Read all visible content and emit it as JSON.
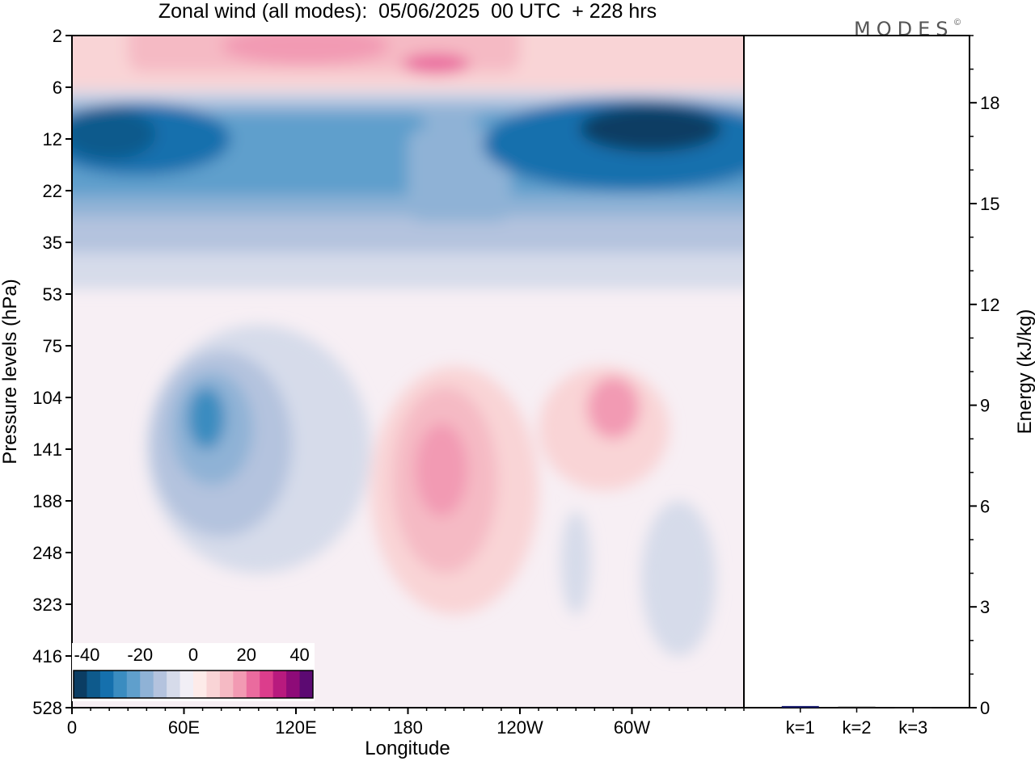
{
  "chart_data": [
    {
      "type": "heatmap",
      "title": "Zonal wind (all modes):  05/06/2025  00 UTC  + 228 hrs",
      "xlabel": "Longitude",
      "ylabel": "Pressure levels (hPa)",
      "x_ticks": [
        "0",
        "60E",
        "120E",
        "180",
        "120W",
        "60W"
      ],
      "x_tick_values": [
        0,
        60,
        120,
        180,
        240,
        300
      ],
      "xlim": [
        0,
        360
      ],
      "y_ticks": [
        "2",
        "6",
        "12",
        "22",
        "35",
        "53",
        "75",
        "104",
        "141",
        "188",
        "248",
        "323",
        "416",
        "528"
      ],
      "y_scale": "level-index",
      "colorbar": {
        "ticks": [
          "-40",
          "-20",
          "0",
          "20",
          "40"
        ],
        "tick_values": [
          -40,
          -20,
          0,
          20,
          40
        ],
        "range": [
          -45,
          45
        ],
        "step": 5,
        "colors": [
          "#0b3d63",
          "#0e5a8c",
          "#1570ad",
          "#3a8cc0",
          "#5f9fcc",
          "#8fb2d6",
          "#b4c3de",
          "#d6dbea",
          "#f1eff6",
          "#fdebe9",
          "#f9d4d6",
          "#f5bac4",
          "#f29ab3",
          "#ea6b9e",
          "#dc3d8c",
          "#b81a7e",
          "#8e0b78",
          "#5c0a72"
        ]
      },
      "features": [
        {
          "name": "stratospheric easterly jet",
          "lon_range": [
            0,
            360
          ],
          "levels": [
            "6",
            "35"
          ],
          "min_value": -40
        },
        {
          "name": "upper westerly band",
          "lon_range": [
            40,
            230
          ],
          "levels": [
            "2",
            "6"
          ],
          "max_value": 25
        },
        {
          "name": "easterly core",
          "lon_center": 75,
          "levels": [
            "75",
            "188"
          ],
          "min_value": -25
        },
        {
          "name": "westerly core",
          "lon_center": 200,
          "levels": [
            "104",
            "248"
          ],
          "max_value": 20
        },
        {
          "name": "westerly core",
          "lon_center": 290,
          "levels": [
            "75",
            "141"
          ],
          "max_value": 20
        }
      ]
    },
    {
      "type": "bar",
      "ylabel": "Energy (kJ/kg)",
      "categories": [
        "k=1",
        "k=2",
        "k=3"
      ],
      "values": [
        0.05,
        0.03,
        0.01
      ],
      "ylim": [
        0,
        20
      ],
      "y_ticks": [
        0,
        3,
        6,
        9,
        12,
        15,
        18
      ]
    }
  ],
  "logo": "MODES",
  "logo_mark": "©"
}
